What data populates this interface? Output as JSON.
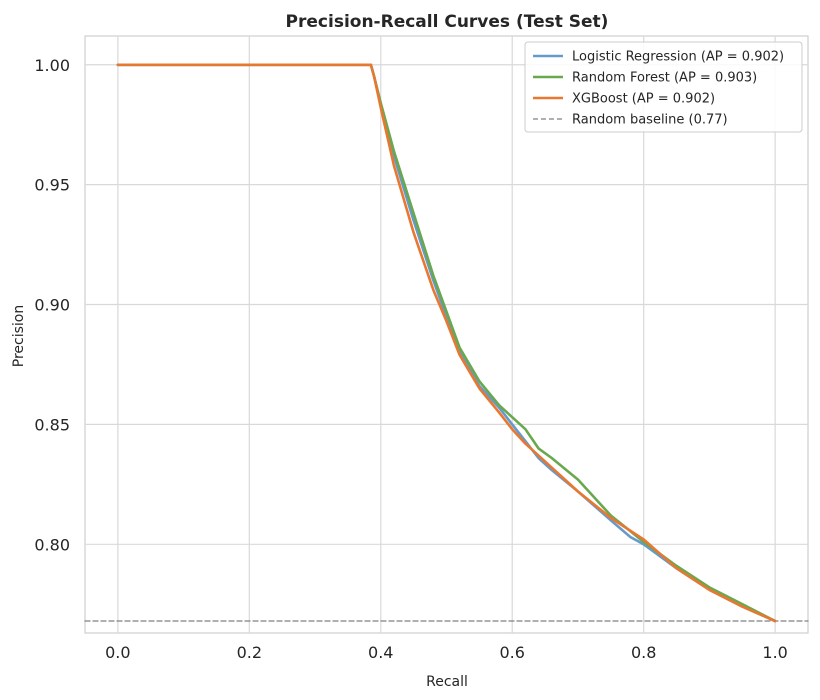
{
  "chart_data": {
    "type": "line",
    "title": "Precision-Recall Curves (Test Set)",
    "xlabel": "Recall",
    "ylabel": "Precision",
    "xlim": [
      -0.05,
      1.05
    ],
    "ylim": [
      0.763,
      1.012
    ],
    "xticks": [
      0.0,
      0.2,
      0.4,
      0.6,
      0.8,
      1.0
    ],
    "xtick_labels": [
      "0.0",
      "0.2",
      "0.4",
      "0.6",
      "0.8",
      "1.0"
    ],
    "yticks": [
      0.8,
      0.85,
      0.9,
      0.95,
      1.0
    ],
    "ytick_labels": [
      "0.80",
      "0.85",
      "0.90",
      "0.95",
      "1.00"
    ],
    "grid": true,
    "legend_position": "top-right",
    "series": [
      {
        "name": "Logistic Regression  (AP = 0.902)",
        "color": "#6699cc",
        "style": "solid",
        "x": [
          0.0,
          0.385,
          0.39,
          0.4,
          0.42,
          0.45,
          0.48,
          0.5,
          0.52,
          0.55,
          0.58,
          0.6,
          0.62,
          0.64,
          0.66,
          0.7,
          0.75,
          0.78,
          0.8,
          0.85,
          0.9,
          0.95,
          1.0
        ],
        "y": [
          1.0,
          1.0,
          0.995,
          0.983,
          0.962,
          0.935,
          0.91,
          0.895,
          0.88,
          0.866,
          0.857,
          0.85,
          0.843,
          0.836,
          0.831,
          0.822,
          0.81,
          0.803,
          0.8,
          0.79,
          0.781,
          0.774,
          0.768
        ]
      },
      {
        "name": "Random Forest  (AP = 0.903)",
        "color": "#6aa84f",
        "style": "solid",
        "x": [
          0.0,
          0.385,
          0.39,
          0.4,
          0.42,
          0.45,
          0.48,
          0.5,
          0.52,
          0.55,
          0.58,
          0.6,
          0.62,
          0.64,
          0.66,
          0.7,
          0.75,
          0.8,
          0.85,
          0.9,
          0.95,
          1.0
        ],
        "y": [
          1.0,
          1.0,
          0.995,
          0.984,
          0.964,
          0.938,
          0.912,
          0.897,
          0.882,
          0.868,
          0.858,
          0.853,
          0.848,
          0.84,
          0.836,
          0.827,
          0.812,
          0.801,
          0.791,
          0.782,
          0.775,
          0.768
        ]
      },
      {
        "name": "XGBoost  (AP = 0.902)",
        "color": "#e8782f",
        "style": "solid",
        "x": [
          0.0,
          0.385,
          0.39,
          0.4,
          0.42,
          0.45,
          0.48,
          0.5,
          0.52,
          0.55,
          0.58,
          0.6,
          0.62,
          0.64,
          0.66,
          0.7,
          0.75,
          0.8,
          0.85,
          0.9,
          0.95,
          1.0
        ],
        "y": [
          1.0,
          1.0,
          0.995,
          0.982,
          0.958,
          0.93,
          0.906,
          0.893,
          0.879,
          0.865,
          0.855,
          0.848,
          0.842,
          0.837,
          0.832,
          0.822,
          0.811,
          0.802,
          0.79,
          0.781,
          0.774,
          0.768
        ]
      },
      {
        "name": "Random baseline (0.77)",
        "color": "#808080",
        "style": "dashed",
        "x": [
          -0.05,
          1.05
        ],
        "y": [
          0.768,
          0.768
        ]
      }
    ]
  }
}
